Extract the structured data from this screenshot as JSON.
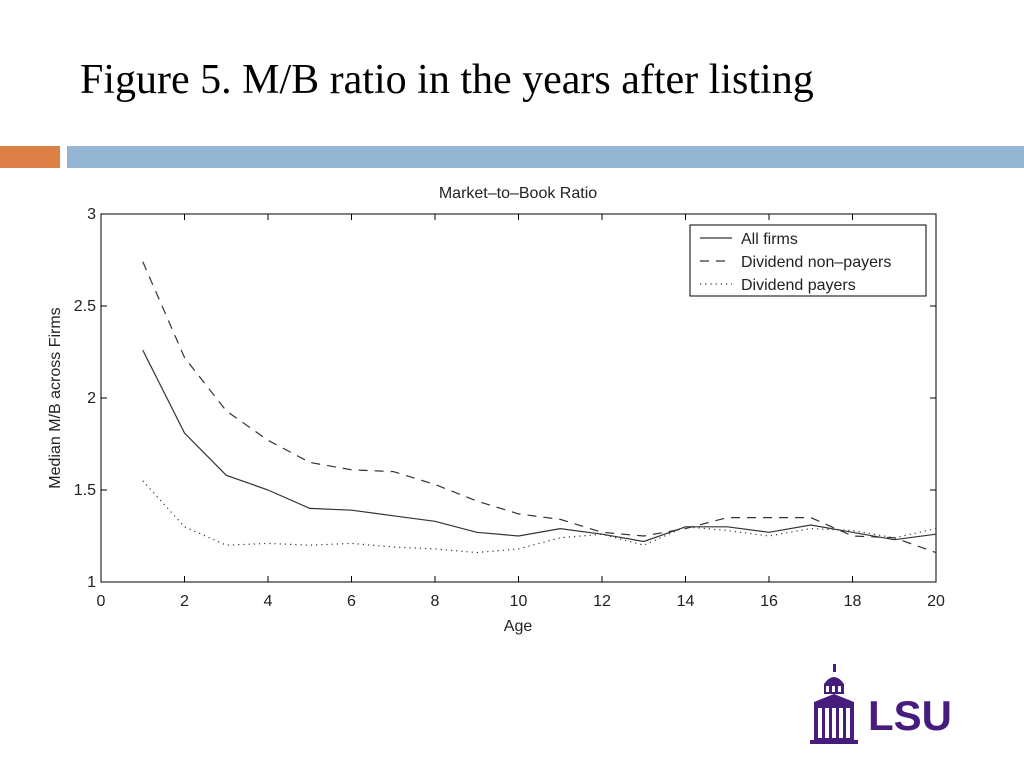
{
  "slide": {
    "title": "Figure 5. M/B ratio in the years after listing",
    "accent_colors": [
      "#dd8047",
      "#94b6d2"
    ]
  },
  "logo": {
    "text": "LSU",
    "color": "#461d7c",
    "icon": "university-building-icon"
  },
  "chart_data": {
    "type": "line",
    "title": "Market–to–Book Ratio",
    "xlabel": "Age",
    "ylabel": "Median M/B across Firms",
    "xlim": [
      0,
      20
    ],
    "ylim": [
      1,
      3
    ],
    "xticks": [
      0,
      2,
      4,
      6,
      8,
      10,
      12,
      14,
      16,
      18,
      20
    ],
    "yticks": [
      1,
      1.5,
      2,
      2.5,
      3
    ],
    "ytick_labels": [
      "1",
      "1.5",
      "2",
      "2.5",
      "3"
    ],
    "grid": false,
    "legend_position": "top-right",
    "x": [
      1,
      2,
      3,
      4,
      5,
      6,
      7,
      8,
      9,
      10,
      11,
      12,
      13,
      14,
      15,
      16,
      17,
      18,
      19,
      20
    ],
    "series": [
      {
        "name": "All firms",
        "style": "solid",
        "values": [
          2.26,
          1.81,
          1.58,
          1.5,
          1.4,
          1.39,
          1.36,
          1.33,
          1.27,
          1.25,
          1.29,
          1.26,
          1.22,
          1.3,
          1.3,
          1.27,
          1.31,
          1.27,
          1.23,
          1.26
        ]
      },
      {
        "name": "Dividend non–payers",
        "style": "dashed",
        "values": [
          2.74,
          2.22,
          1.93,
          1.77,
          1.65,
          1.61,
          1.6,
          1.53,
          1.44,
          1.37,
          1.34,
          1.27,
          1.25,
          1.29,
          1.35,
          1.35,
          1.35,
          1.25,
          1.24,
          1.16
        ]
      },
      {
        "name": "Dividend payers",
        "style": "dotted",
        "values": [
          1.55,
          1.3,
          1.2,
          1.21,
          1.2,
          1.21,
          1.19,
          1.18,
          1.16,
          1.18,
          1.24,
          1.26,
          1.2,
          1.3,
          1.28,
          1.25,
          1.29,
          1.28,
          1.24,
          1.29
        ]
      }
    ]
  }
}
